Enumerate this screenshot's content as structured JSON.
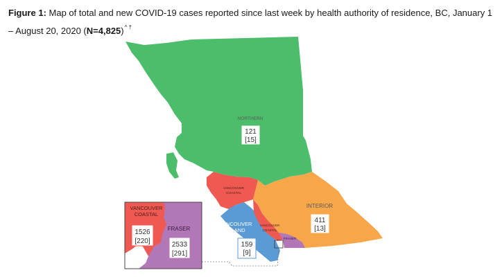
{
  "figure": {
    "label": "Figure 1:",
    "title_part1": "Map of total and new COVID-19 cases reported since last week by health authority of residence, BC, January 1 – August 20, 2020 (",
    "title_bold": "N=4,825",
    "title_part2": ")",
    "title_marks": "^ †"
  },
  "colors": {
    "northern": "#4cbd6a",
    "interior": "#f8a64a",
    "vancouver_island": "#5b9bd5",
    "vancouver_coastal": "#ee5a52",
    "fraser": "#b177b7"
  },
  "regions": {
    "northern": {
      "name": "NORTHERN",
      "total": "121",
      "new": "[15]"
    },
    "interior": {
      "name": "INTERIOR",
      "total": "411",
      "new": "[13]"
    },
    "vancouver_island": {
      "name_line1": "VANCOUVER",
      "name_line2": "ISLAND",
      "total": "159",
      "new": "[9]"
    },
    "vancouver_coastal": {
      "name_line1": "VANCOUVER",
      "name_line2": "COASTAL",
      "total": "1526",
      "new": "[220]"
    },
    "fraser": {
      "name": "FRASER",
      "total": "2533",
      "new": "[291]"
    }
  }
}
